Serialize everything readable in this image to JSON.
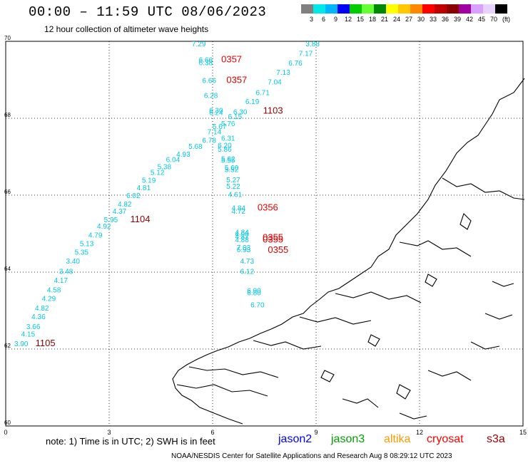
{
  "header": {
    "title": "00:00 – 11:59 UTC 08/06/2023",
    "subtitle": "12 hour collection of altimeter wave heights"
  },
  "color_scale": {
    "labels": [
      "3",
      "6",
      "9",
      "12",
      "15",
      "18",
      "21",
      "24",
      "27",
      "30",
      "33",
      "36",
      "39",
      "42",
      "45",
      "70"
    ],
    "unit": "(ft)",
    "colors": [
      "#808080",
      "#00e8e8",
      "#00b4ff",
      "#0000ff",
      "#00cc00",
      "#66ff33",
      "#008800",
      "#ffff00",
      "#ffc800",
      "#ff8800",
      "#ff0000",
      "#c00000",
      "#8b0000",
      "#a000a0",
      "#d8a0ff",
      "#e8d0ff",
      "#000000"
    ]
  },
  "axes": {
    "x_ticks": [
      "0",
      "3",
      "6",
      "9",
      "12",
      "15"
    ],
    "y_ticks": [
      "60",
      "62",
      "64",
      "66",
      "68",
      "70"
    ],
    "xlim": [
      0,
      15
    ],
    "ylim": [
      60,
      70
    ]
  },
  "observations": [
    {
      "lon": 5.6,
      "lat": 69.87,
      "v": "7.29",
      "c": "#00c8e0"
    },
    {
      "lon": 8.9,
      "lat": 69.87,
      "v": "3.88",
      "c": "#00c8e0"
    },
    {
      "lon": 8.7,
      "lat": 69.62,
      "v": "7.17",
      "c": "#00c8e0"
    },
    {
      "lon": 5.8,
      "lat": 69.45,
      "v": "6.66",
      "c": "#00c8e0"
    },
    {
      "lon": 5.8,
      "lat": 69.38,
      "v": "6.38",
      "c": "#00c8e0"
    },
    {
      "lon": 8.4,
      "lat": 69.37,
      "v": "6.76",
      "c": "#00c8e0"
    },
    {
      "lon": 8.05,
      "lat": 69.13,
      "v": "7.13",
      "c": "#00c8e0"
    },
    {
      "lon": 5.9,
      "lat": 68.92,
      "v": "6.66",
      "c": "#00c8e0"
    },
    {
      "lon": 7.8,
      "lat": 68.88,
      "v": "7.04",
      "c": "#00c8e0"
    },
    {
      "lon": 7.45,
      "lat": 68.6,
      "v": "6.71",
      "c": "#00c8e0"
    },
    {
      "lon": 5.95,
      "lat": 68.53,
      "v": "6.28",
      "c": "#00c8e0"
    },
    {
      "lon": 7.15,
      "lat": 68.37,
      "v": "6.19",
      "c": "#00c8e0"
    },
    {
      "lon": 6.1,
      "lat": 68.14,
      "v": "6.30",
      "c": "#00c8e0"
    },
    {
      "lon": 6.1,
      "lat": 68.08,
      "v": "6.24",
      "c": "#00c8e0"
    },
    {
      "lon": 6.8,
      "lat": 68.1,
      "v": "6.30",
      "c": "#00c8e0"
    },
    {
      "lon": 6.65,
      "lat": 67.98,
      "v": "6.15",
      "c": "#00c8e0"
    },
    {
      "lon": 6.45,
      "lat": 67.8,
      "v": "5.76",
      "c": "#00c8e0"
    },
    {
      "lon": 6.2,
      "lat": 67.72,
      "v": "5.67",
      "c": "#00c8e0"
    },
    {
      "lon": 6.05,
      "lat": 67.58,
      "v": "7.14",
      "c": "#00c8e0"
    },
    {
      "lon": 6.45,
      "lat": 67.42,
      "v": "6.31",
      "c": "#00c8e0"
    },
    {
      "lon": 5.9,
      "lat": 67.36,
      "v": "6.78",
      "c": "#00c8e0"
    },
    {
      "lon": 6.35,
      "lat": 67.23,
      "v": "6.20",
      "c": "#00c8e0"
    },
    {
      "lon": 5.5,
      "lat": 67.2,
      "v": "5.68",
      "c": "#00c8e0"
    },
    {
      "lon": 6.35,
      "lat": 67.13,
      "v": "5.86",
      "c": "#00c8e0"
    },
    {
      "lon": 5.15,
      "lat": 67.0,
      "v": "4.93",
      "c": "#00c8e0"
    },
    {
      "lon": 6.45,
      "lat": 66.88,
      "v": "5.62",
      "c": "#00c8e0"
    },
    {
      "lon": 6.45,
      "lat": 66.84,
      "v": "5.55",
      "c": "#00c8e0"
    },
    {
      "lon": 4.85,
      "lat": 66.86,
      "v": "6.04",
      "c": "#00c8e0"
    },
    {
      "lon": 4.6,
      "lat": 66.68,
      "v": "5.38",
      "c": "#00c8e0"
    },
    {
      "lon": 6.55,
      "lat": 66.65,
      "v": "5.60",
      "c": "#00c8e0"
    },
    {
      "lon": 6.55,
      "lat": 66.6,
      "v": "5.52",
      "c": "#00c8e0"
    },
    {
      "lon": 4.4,
      "lat": 66.53,
      "v": "5.12",
      "c": "#00c8e0"
    },
    {
      "lon": 6.6,
      "lat": 66.33,
      "v": "5.27",
      "c": "#00c8e0"
    },
    {
      "lon": 4.15,
      "lat": 66.32,
      "v": "5.19",
      "c": "#00c8e0"
    },
    {
      "lon": 6.6,
      "lat": 66.17,
      "v": "5.22",
      "c": "#00c8e0"
    },
    {
      "lon": 4.0,
      "lat": 66.13,
      "v": "4.81",
      "c": "#00c8e0"
    },
    {
      "lon": 6.65,
      "lat": 65.95,
      "v": "4.61",
      "c": "#00c8e0"
    },
    {
      "lon": 3.7,
      "lat": 65.93,
      "v": "6.02",
      "c": "#00c8e0"
    },
    {
      "lon": 3.45,
      "lat": 65.7,
      "v": "4.82",
      "c": "#00c8e0"
    },
    {
      "lon": 6.75,
      "lat": 65.6,
      "v": "4.84",
      "c": "#00c8e0"
    },
    {
      "lon": 6.75,
      "lat": 65.52,
      "v": "4.72",
      "c": "#00c8e0"
    },
    {
      "lon": 3.3,
      "lat": 65.52,
      "v": "4.37",
      "c": "#00c8e0"
    },
    {
      "lon": 3.05,
      "lat": 65.3,
      "v": "5.95",
      "c": "#00c8e0"
    },
    {
      "lon": 2.85,
      "lat": 65.13,
      "v": "4.92",
      "c": "#00c8e0"
    },
    {
      "lon": 6.85,
      "lat": 64.97,
      "v": "4.84",
      "c": "#00c8e0"
    },
    {
      "lon": 6.85,
      "lat": 64.93,
      "v": "4.90",
      "c": "#00c8e0"
    },
    {
      "lon": 6.85,
      "lat": 64.86,
      "v": "4.87",
      "c": "#00c8e0"
    },
    {
      "lon": 6.85,
      "lat": 64.78,
      "v": "4.88",
      "c": "#00c8e0"
    },
    {
      "lon": 2.6,
      "lat": 64.9,
      "v": "4.79",
      "c": "#00c8e0"
    },
    {
      "lon": 2.35,
      "lat": 64.68,
      "v": "5.13",
      "c": "#00c8e0"
    },
    {
      "lon": 6.9,
      "lat": 64.57,
      "v": "7.03",
      "c": "#00c8e0"
    },
    {
      "lon": 6.9,
      "lat": 64.52,
      "v": "6.93",
      "c": "#00c8e0"
    },
    {
      "lon": 2.2,
      "lat": 64.45,
      "v": "5.35",
      "c": "#00c8e0"
    },
    {
      "lon": 7.0,
      "lat": 64.22,
      "v": "4.73",
      "c": "#00c8e0"
    },
    {
      "lon": 1.95,
      "lat": 64.22,
      "v": "3.40",
      "c": "#00c8e0"
    },
    {
      "lon": 1.75,
      "lat": 63.95,
      "v": "3.48",
      "c": "#00c8e0"
    },
    {
      "lon": 7.0,
      "lat": 63.95,
      "v": "6.12",
      "c": "#00c8e0"
    },
    {
      "lon": 1.6,
      "lat": 63.72,
      "v": "4.17",
      "c": "#00c8e0"
    },
    {
      "lon": 1.4,
      "lat": 63.47,
      "v": "4.58",
      "c": "#00c8e0"
    },
    {
      "lon": 7.2,
      "lat": 63.45,
      "v": "6.90",
      "c": "#00c8e0"
    },
    {
      "lon": 7.2,
      "lat": 63.4,
      "v": "6.80",
      "c": "#00c8e0"
    },
    {
      "lon": 1.25,
      "lat": 63.25,
      "v": "4.29",
      "c": "#00c8e0"
    },
    {
      "lon": 7.3,
      "lat": 63.08,
      "v": "6.70",
      "c": "#00c8e0"
    },
    {
      "lon": 1.05,
      "lat": 63.0,
      "v": "4.82",
      "c": "#00c8e0"
    },
    {
      "lon": 0.95,
      "lat": 62.78,
      "v": "4.36",
      "c": "#00c8e0"
    },
    {
      "lon": 0.8,
      "lat": 62.52,
      "v": "3.66",
      "c": "#00c8e0"
    },
    {
      "lon": 0.65,
      "lat": 62.32,
      "v": "4.15",
      "c": "#00c8e0"
    },
    {
      "lon": 0.45,
      "lat": 62.07,
      "v": "3.90",
      "c": "#00c8e0"
    }
  ],
  "pass_times": [
    {
      "lon": 6.55,
      "lat": 69.45,
      "t": "0357",
      "c": "#e00000"
    },
    {
      "lon": 6.7,
      "lat": 68.92,
      "t": "0357",
      "c": "#e00000"
    },
    {
      "lon": 7.75,
      "lat": 68.12,
      "t": "1103",
      "c": "#8b0000"
    },
    {
      "lon": 3.9,
      "lat": 65.3,
      "t": "1104",
      "c": "#8b0000"
    },
    {
      "lon": 7.6,
      "lat": 65.6,
      "t": "0356",
      "c": "#e00000"
    },
    {
      "lon": 7.75,
      "lat": 64.82,
      "t": "0355",
      "c": "#e00000"
    },
    {
      "lon": 7.75,
      "lat": 64.77,
      "t": "0355",
      "c": "#e00000"
    },
    {
      "lon": 7.9,
      "lat": 64.5,
      "t": "0355",
      "c": "#e00000"
    },
    {
      "lon": 1.15,
      "lat": 62.07,
      "t": "1105",
      "c": "#8b0000"
    }
  ],
  "footer": {
    "note": "note: 1) Time is in UTC; 2) SWH is in feet",
    "satellites": [
      {
        "name": "jason2",
        "color": "#0000ff"
      },
      {
        "name": "jason3",
        "color": "#00a000"
      },
      {
        "name": "altika",
        "color": "#ff9900"
      },
      {
        "name": "cryosat",
        "color": "#ff0000"
      },
      {
        "name": "s3a",
        "color": "#a00000"
      }
    ],
    "credit": "NOAA/NESDIS Center for Satellite Applications and Research    Aug  8 08:29:12 UTC 2023"
  }
}
